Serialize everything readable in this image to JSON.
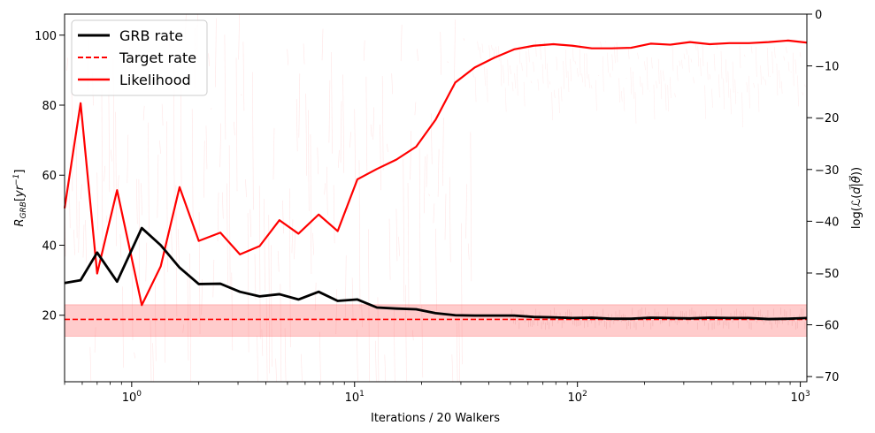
{
  "chart_data": {
    "type": "line",
    "xlabel": "Iterations / 20 Walkers",
    "ylabel_left": "R_GRB [yr^-1]",
    "ylabel_right": "log(L(d|θ))",
    "xscale": "log",
    "xlim": [
      0.5,
      1070
    ],
    "ylim_left": [
      1,
      106
    ],
    "ylim_right": [
      -71,
      0
    ],
    "x_ticks": [
      {
        "value": 1,
        "label": "10",
        "exp": "0"
      },
      {
        "value": 10,
        "label": "10",
        "exp": "1"
      },
      {
        "value": 100,
        "label": "10",
        "exp": "2"
      },
      {
        "value": 1000,
        "label": "10",
        "exp": "3"
      }
    ],
    "y_ticks_left": [
      20,
      40,
      60,
      80,
      100
    ],
    "y_ticks_right": [
      0,
      -10,
      -20,
      -30,
      -40,
      -50,
      -60,
      -70
    ],
    "legend_position": "top-left",
    "target_band": {
      "low": 14,
      "high": 23
    },
    "series": [
      {
        "name": "GRB rate",
        "axis": "left",
        "color": "#000000",
        "style": "solid",
        "x": [
          0.5,
          0.59,
          0.7,
          0.86,
          1.11,
          1.35,
          1.64,
          2.0,
          2.5,
          3.06,
          3.75,
          4.6,
          5.6,
          6.9,
          8.4,
          10.3,
          12.6,
          15.4,
          18.9,
          23.1,
          28.3,
          34.6,
          42.4,
          52,
          63.6,
          78,
          95,
          116,
          142,
          174,
          213,
          261,
          320,
          392,
          480,
          588,
          720,
          882,
          1070
        ],
        "values": [
          29.2,
          30.0,
          37.9,
          29.6,
          44.9,
          40.0,
          33.6,
          28.9,
          29.0,
          26.7,
          25.4,
          26.0,
          24.5,
          26.7,
          24.1,
          24.5,
          22.2,
          21.9,
          21.7,
          20.6,
          20.0,
          19.9,
          19.9,
          19.9,
          19.5,
          19.4,
          19.2,
          19.3,
          19.0,
          19.0,
          19.3,
          19.2,
          19.1,
          19.3,
          19.2,
          19.2,
          18.9,
          19.0,
          19.2
        ]
      },
      {
        "name": "Target rate",
        "axis": "left",
        "color": "#ff0000",
        "style": "dashed",
        "x": [
          0.5,
          1070
        ],
        "values": [
          18.8,
          18.8
        ]
      },
      {
        "name": "Likelihood",
        "axis": "right",
        "color": "#ff0000",
        "style": "solid",
        "x": [
          0.5,
          0.59,
          0.7,
          0.86,
          1.11,
          1.35,
          1.64,
          2.0,
          2.5,
          3.06,
          3.75,
          4.6,
          5.6,
          6.9,
          8.4,
          10.3,
          12.6,
          15.4,
          18.9,
          23.1,
          28.3,
          34.6,
          42.4,
          52,
          63.6,
          78,
          95,
          116,
          142,
          174,
          213,
          261,
          320,
          392,
          480,
          588,
          720,
          882,
          1070
        ],
        "values": [
          -37.5,
          -17.2,
          -50.1,
          -34.0,
          -56.2,
          -48.7,
          -33.4,
          -43.8,
          -42.2,
          -46.4,
          -44.8,
          -39.8,
          -42.4,
          -38.7,
          -41.9,
          -31.9,
          -29.9,
          -28.1,
          -25.6,
          -20.4,
          -13.2,
          -10.3,
          -8.4,
          -6.8,
          -6.1,
          -5.8,
          -6.1,
          -6.6,
          -6.6,
          -6.5,
          -5.7,
          -5.9,
          -5.4,
          -5.8,
          -5.6,
          -5.6,
          -5.4,
          -5.1,
          -5.5
        ]
      }
    ]
  }
}
